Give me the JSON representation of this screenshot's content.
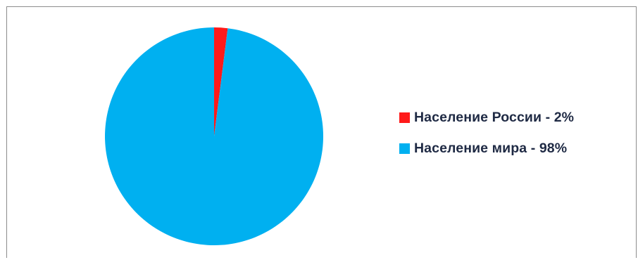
{
  "chart_data": {
    "type": "pie",
    "title": "",
    "categories": [
      "Население России - 2%",
      "Население мира - 98%"
    ],
    "values": [
      2,
      98
    ],
    "colors": [
      "#ff1a1a",
      "#00b0f0"
    ],
    "legend_position": "right",
    "start_angle_deg": 0,
    "direction": "clockwise"
  }
}
